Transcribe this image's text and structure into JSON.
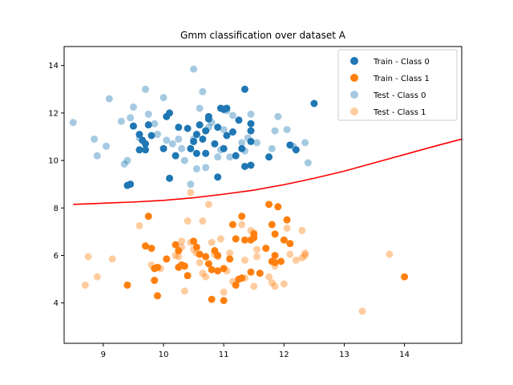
{
  "chart_data": {
    "type": "scatter",
    "title": "Gmm classification over dataset A",
    "xlabel": "",
    "ylabel": "",
    "xlim": [
      8.35,
      14.95
    ],
    "ylim": [
      2.3,
      14.8
    ],
    "xticks": [
      9,
      10,
      11,
      12,
      13,
      14
    ],
    "yticks": [
      4,
      6,
      8,
      10,
      12,
      14
    ],
    "grid": false,
    "legend_position": "top-right",
    "series": [
      {
        "name": "Train - Class 0",
        "color": "#1f77b4",
        "alpha": 1.0,
        "points": [
          [
            9.4,
            8.95
          ],
          [
            9.45,
            9.0
          ],
          [
            9.5,
            11.45
          ],
          [
            9.6,
            11.1
          ],
          [
            9.65,
            10.85
          ],
          [
            9.7,
            10.7
          ],
          [
            9.75,
            11.5
          ],
          [
            9.8,
            11.05
          ],
          [
            9.7,
            10.45
          ],
          [
            10.0,
            10.5
          ],
          [
            10.1,
            9.25
          ],
          [
            10.05,
            11.85
          ],
          [
            10.1,
            12.0
          ],
          [
            10.2,
            10.2
          ],
          [
            10.25,
            11.4
          ],
          [
            10.4,
            11.35
          ],
          [
            10.45,
            10.5
          ],
          [
            10.5,
            10.8
          ],
          [
            10.55,
            10.3
          ],
          [
            10.55,
            11.1
          ],
          [
            10.6,
            11.5
          ],
          [
            10.65,
            10.9
          ],
          [
            10.7,
            10.3
          ],
          [
            10.7,
            11.25
          ],
          [
            10.75,
            11.85
          ],
          [
            10.75,
            11.75
          ],
          [
            10.85,
            10.7
          ],
          [
            10.9,
            11.4
          ],
          [
            10.9,
            9.3
          ],
          [
            10.95,
            12.2
          ],
          [
            11.0,
            12.15
          ],
          [
            11.05,
            12.2
          ],
          [
            11.0,
            10.5
          ],
          [
            11.05,
            11.05
          ],
          [
            11.15,
            11.2
          ],
          [
            11.2,
            10.2
          ],
          [
            11.25,
            11.7
          ],
          [
            11.3,
            10.5
          ],
          [
            11.35,
            9.75
          ],
          [
            11.35,
            13.0
          ],
          [
            11.45,
            11.55
          ],
          [
            11.45,
            11.25
          ],
          [
            11.45,
            10.8
          ],
          [
            11.45,
            9.8
          ],
          [
            11.75,
            10.15
          ],
          [
            12.1,
            10.65
          ],
          [
            12.2,
            10.45
          ],
          [
            12.5,
            12.4
          ],
          [
            9.6,
            10.45
          ]
        ]
      },
      {
        "name": "Train - Class 1",
        "color": "#ff7f0e",
        "alpha": 1.0,
        "points": [
          [
            9.4,
            4.75
          ],
          [
            9.7,
            6.4
          ],
          [
            9.75,
            7.65
          ],
          [
            9.8,
            6.3
          ],
          [
            9.85,
            5.45
          ],
          [
            9.85,
            4.95
          ],
          [
            9.9,
            5.5
          ],
          [
            9.9,
            4.3
          ],
          [
            10.05,
            5.85
          ],
          [
            10.2,
            6.45
          ],
          [
            10.25,
            6.2
          ],
          [
            10.25,
            5.5
          ],
          [
            10.3,
            5.6
          ],
          [
            10.35,
            5.55
          ],
          [
            10.4,
            5.15
          ],
          [
            10.5,
            6.6
          ],
          [
            10.55,
            6.35
          ],
          [
            10.6,
            6.05
          ],
          [
            10.7,
            5.95
          ],
          [
            10.75,
            5.65
          ],
          [
            10.8,
            5.4
          ],
          [
            10.8,
            4.15
          ],
          [
            10.85,
            6.2
          ],
          [
            10.9,
            6.0
          ],
          [
            10.9,
            5.35
          ],
          [
            11.0,
            5.45
          ],
          [
            11.0,
            4.1
          ],
          [
            11.1,
            5.85
          ],
          [
            11.15,
            7.3
          ],
          [
            11.2,
            6.7
          ],
          [
            11.25,
            5.0
          ],
          [
            11.2,
            4.75
          ],
          [
            11.3,
            5.05
          ],
          [
            11.3,
            7.65
          ],
          [
            11.35,
            6.65
          ],
          [
            11.45,
            6.65
          ],
          [
            11.45,
            5.3
          ],
          [
            11.5,
            6.9
          ],
          [
            11.5,
            6.75
          ],
          [
            11.6,
            5.25
          ],
          [
            11.7,
            6.3
          ],
          [
            11.75,
            8.15
          ],
          [
            11.8,
            7.3
          ],
          [
            11.8,
            5.75
          ],
          [
            11.85,
            6.0
          ],
          [
            11.85,
            5.7
          ],
          [
            11.9,
            8.05
          ],
          [
            11.95,
            5.75
          ],
          [
            12.0,
            6.65
          ],
          [
            12.05,
            7.5
          ],
          [
            12.1,
            6.5
          ],
          [
            14.0,
            5.1
          ],
          [
            11.85,
            6.9
          ]
        ]
      },
      {
        "name": "Test - Class 0",
        "color": "#1f77b4",
        "alpha": 0.4,
        "points": [
          [
            8.5,
            11.6
          ],
          [
            8.85,
            10.9
          ],
          [
            8.9,
            10.2
          ],
          [
            9.05,
            10.6
          ],
          [
            9.1,
            12.6
          ],
          [
            9.3,
            11.65
          ],
          [
            9.35,
            9.85
          ],
          [
            9.4,
            10.0
          ],
          [
            9.45,
            11.8
          ],
          [
            9.5,
            12.25
          ],
          [
            9.6,
            10.95
          ],
          [
            9.7,
            13.0
          ],
          [
            9.75,
            11.95
          ],
          [
            9.85,
            11.55
          ],
          [
            9.9,
            11.1
          ],
          [
            10.0,
            12.65
          ],
          [
            10.05,
            10.85
          ],
          [
            10.15,
            10.7
          ],
          [
            10.25,
            10.9
          ],
          [
            10.3,
            10.5
          ],
          [
            10.35,
            10.0
          ],
          [
            10.45,
            9.0
          ],
          [
            10.5,
            13.85
          ],
          [
            10.5,
            10.9
          ],
          [
            10.55,
            9.65
          ],
          [
            10.6,
            12.2
          ],
          [
            10.65,
            12.9
          ],
          [
            10.7,
            9.7
          ],
          [
            10.75,
            11.4
          ],
          [
            10.8,
            11.6
          ],
          [
            10.9,
            10.15
          ],
          [
            10.95,
            10.45
          ],
          [
            11.0,
            11.3
          ],
          [
            11.05,
            12.1
          ],
          [
            11.1,
            10.15
          ],
          [
            11.15,
            11.9
          ],
          [
            11.3,
            10.75
          ],
          [
            11.35,
            10.4
          ],
          [
            11.4,
            10.95
          ],
          [
            11.45,
            11.95
          ],
          [
            11.55,
            10.75
          ],
          [
            11.8,
            10.5
          ],
          [
            11.85,
            11.25
          ],
          [
            11.9,
            11.85
          ],
          [
            12.05,
            11.3
          ],
          [
            12.15,
            10.6
          ],
          [
            12.35,
            10.75
          ],
          [
            12.4,
            9.9
          ]
        ]
      },
      {
        "name": "Test - Class 1",
        "color": "#ff7f0e",
        "alpha": 0.4,
        "points": [
          [
            8.7,
            4.75
          ],
          [
            8.75,
            5.95
          ],
          [
            8.9,
            5.1
          ],
          [
            9.15,
            5.85
          ],
          [
            9.6,
            7.25
          ],
          [
            9.8,
            5.6
          ],
          [
            9.95,
            5.45
          ],
          [
            10.2,
            6.0
          ],
          [
            10.25,
            5.95
          ],
          [
            10.3,
            6.6
          ],
          [
            10.3,
            6.35
          ],
          [
            10.35,
            4.5
          ],
          [
            10.4,
            7.45
          ],
          [
            10.45,
            8.65
          ],
          [
            10.45,
            6.55
          ],
          [
            10.5,
            6.25
          ],
          [
            10.55,
            6.1
          ],
          [
            10.6,
            5.7
          ],
          [
            10.65,
            7.45
          ],
          [
            10.65,
            5.25
          ],
          [
            10.7,
            5.1
          ],
          [
            10.75,
            8.15
          ],
          [
            10.8,
            6.55
          ],
          [
            10.85,
            6.05
          ],
          [
            10.9,
            5.95
          ],
          [
            10.95,
            6.7
          ],
          [
            11.0,
            4.45
          ],
          [
            11.05,
            5.35
          ],
          [
            11.1,
            6.1
          ],
          [
            11.15,
            4.9
          ],
          [
            11.3,
            7.3
          ],
          [
            11.35,
            5.8
          ],
          [
            11.35,
            5.05
          ],
          [
            11.45,
            7.05
          ],
          [
            11.5,
            4.7
          ],
          [
            11.5,
            6.95
          ],
          [
            11.55,
            6.25
          ],
          [
            11.55,
            5.95
          ],
          [
            11.7,
            6.3
          ],
          [
            11.75,
            5.1
          ],
          [
            11.8,
            4.85
          ],
          [
            11.85,
            5.55
          ],
          [
            11.85,
            4.7
          ],
          [
            12.0,
            4.8
          ],
          [
            12.05,
            7.15
          ],
          [
            12.1,
            6.05
          ],
          [
            12.2,
            5.8
          ],
          [
            12.3,
            5.9
          ],
          [
            12.3,
            7.05
          ],
          [
            12.35,
            6.0
          ],
          [
            12.35,
            6.1
          ],
          [
            13.3,
            3.65
          ],
          [
            13.75,
            6.05
          ]
        ]
      }
    ],
    "decision_boundary": {
      "color": "#ff0000",
      "points": [
        [
          8.5,
          8.15
        ],
        [
          9.0,
          8.2
        ],
        [
          9.5,
          8.25
        ],
        [
          10.0,
          8.32
        ],
        [
          10.5,
          8.43
        ],
        [
          11.0,
          8.58
        ],
        [
          11.5,
          8.75
        ],
        [
          12.0,
          8.98
        ],
        [
          12.5,
          9.25
        ],
        [
          13.0,
          9.55
        ],
        [
          13.5,
          9.9
        ],
        [
          14.0,
          10.25
        ],
        [
          14.5,
          10.6
        ],
        [
          14.95,
          10.9
        ]
      ]
    }
  }
}
